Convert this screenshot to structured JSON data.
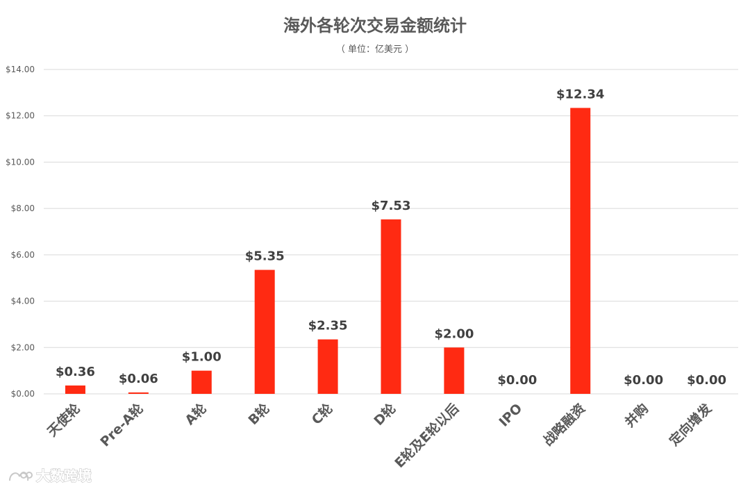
{
  "chart_data": {
    "type": "bar",
    "title": "海外各轮次交易金额统计",
    "subtitle": "（ 单位：亿美元 ）",
    "categories": [
      "天使轮",
      "Pre-A轮",
      "A轮",
      "B轮",
      "C轮",
      "D轮",
      "E轮及E轮以后",
      "IPO",
      "战略融资",
      "并购",
      "定向增发"
    ],
    "values": [
      0.36,
      0.06,
      1.0,
      5.35,
      2.35,
      7.53,
      2.0,
      0.0,
      12.34,
      0.0,
      0.0
    ],
    "data_labels": [
      "$0.36",
      "$0.06",
      "$1.00",
      "$5.35",
      "$2.35",
      "$7.53",
      "$2.00",
      "$0.00",
      "$12.34",
      "$0.00",
      "$0.00"
    ],
    "y_ticks": [
      "$0.00",
      "$2.00",
      "$4.00",
      "$6.00",
      "$8.00",
      "$10.00",
      "$12.00",
      "$14.00"
    ],
    "ylim": [
      0,
      14
    ],
    "grid": true,
    "bar_color": "#ff2a12",
    "xlabel": "",
    "ylabel": ""
  },
  "watermark": {
    "text": "大数跨境"
  }
}
